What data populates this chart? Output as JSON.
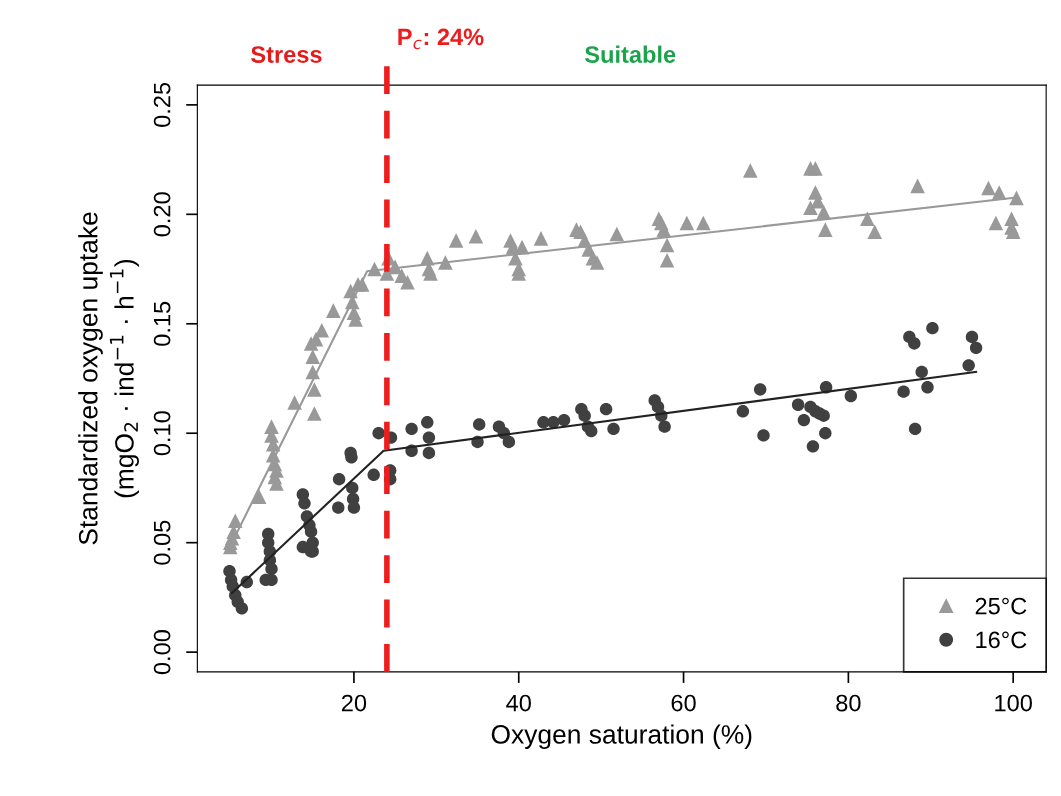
{
  "chart_data": {
    "type": "scatter",
    "xlabel": "Oxygen saturation (%)",
    "ylabel": "Standardized oxygen uptake\n(mgO$_{2}$ · ind$^{−1}$ · h$^{−1}$)",
    "annotations": [
      "Stress",
      "Suitable"
    ],
    "xlim": [
      1,
      104
    ],
    "ylim": [
      -0.009,
      0.259
    ],
    "xticks": [
      20,
      40,
      60,
      80,
      100
    ],
    "yticks": [
      {
        "value": 0,
        "label": "0.00"
      },
      {
        "value": 0.05,
        "label": "0.05"
      },
      {
        "value": 0.1,
        "label": "0.10"
      },
      {
        "value": 0.15,
        "label": "0.15"
      },
      {
        "value": 0.2,
        "label": "0.20"
      },
      {
        "value": 0.25,
        "label": "0.25"
      }
    ],
    "grid": false,
    "legend": "bottom right",
    "ref_lines": [
      {
        "axis": "x",
        "value": 24,
        "label": "P$_{c}$: 24%",
        "color": "#ee1c1c",
        "line_style": "dashed"
      }
    ],
    "series": [
      {
        "name": "25°C",
        "marker": "triangle",
        "color": "#999999",
        "x": [
          5,
          5,
          5.2,
          5.4,
          5.6,
          8.5,
          10,
          10,
          10.2,
          10.2,
          10.4,
          10.4,
          10.6,
          10.6,
          12.8,
          14.8,
          15,
          15,
          15.2,
          15.2,
          15.4,
          16.1,
          17.5,
          19.6,
          19.8,
          20,
          20.2,
          20.5,
          21,
          22.5,
          24,
          24.2,
          25,
          25.8,
          26.5,
          28.9,
          29.1,
          29.3,
          31.1,
          32.4,
          34.8,
          39,
          39.3,
          39.6,
          40,
          40,
          40.4,
          42.7,
          47,
          47.5,
          48,
          48.5,
          49,
          49.5,
          51.9,
          57,
          57.3,
          57.6,
          58,
          58,
          60.4,
          62.4,
          68.1,
          75.4,
          76,
          76,
          76.3,
          75.4,
          77,
          77.2,
          82.3,
          83.2,
          88.4,
          97,
          97.9,
          98.3,
          99.8,
          99.8,
          100,
          100.4
        ],
        "values": [
          0.048,
          0.05,
          0.052,
          0.055,
          0.06,
          0.071,
          0.103,
          0.099,
          0.095,
          0.09,
          0.086,
          0.08,
          0.083,
          0.077,
          0.114,
          0.141,
          0.135,
          0.128,
          0.12,
          0.109,
          0.143,
          0.147,
          0.156,
          0.165,
          0.16,
          0.155,
          0.152,
          0.168,
          0.168,
          0.175,
          0.173,
          0.18,
          0.176,
          0.172,
          0.169,
          0.18,
          0.175,
          0.173,
          0.178,
          0.188,
          0.19,
          0.188,
          0.185,
          0.18,
          0.175,
          0.173,
          0.185,
          0.189,
          0.193,
          0.192,
          0.188,
          0.184,
          0.18,
          0.178,
          0.191,
          0.198,
          0.196,
          0.193,
          0.186,
          0.179,
          0.196,
          0.196,
          0.22,
          0.221,
          0.221,
          0.21,
          0.206,
          0.203,
          0.201,
          0.193,
          0.198,
          0.192,
          0.213,
          0.212,
          0.196,
          0.21,
          0.198,
          0.194,
          0.192,
          0.2075
        ]
      },
      {
        "name": "16°C",
        "marker": "circle",
        "color": "#404040",
        "x": [
          4.9,
          5.1,
          5.3,
          5.6,
          5.9,
          6.4,
          7,
          9.6,
          9.6,
          9.8,
          9.8,
          10,
          10,
          9.3,
          13.8,
          14,
          14.3,
          14.6,
          14.8,
          15,
          15,
          13.8,
          14.8,
          18.2,
          18.1,
          19.6,
          19.7,
          19.8,
          19.9,
          20,
          22.4,
          23,
          24.5,
          24.4,
          24.4,
          27,
          27,
          28.9,
          29.1,
          29.1,
          35.2,
          35,
          37.6,
          38.2,
          38.8,
          43,
          44.2,
          45.5,
          47.6,
          48,
          48.4,
          48.8,
          50.6,
          51.5,
          56.5,
          56.9,
          57.3,
          57.7,
          67.2,
          69.3,
          69.7,
          73.9,
          75.4,
          76,
          76.5,
          77,
          74.6,
          77.2,
          75.7,
          77.3,
          80.3,
          86.7,
          88.1,
          87.4,
          88,
          90.2,
          88.9,
          89.6,
          95,
          95.5,
          94.6
        ],
        "values": [
          0.037,
          0.033,
          0.03,
          0.026,
          0.023,
          0.02,
          0.032,
          0.054,
          0.05,
          0.046,
          0.042,
          0.038,
          0.033,
          0.033,
          0.072,
          0.068,
          0.062,
          0.058,
          0.055,
          0.05,
          0.046,
          0.048,
          0.046,
          0.079,
          0.066,
          0.091,
          0.089,
          0.075,
          0.07,
          0.066,
          0.081,
          0.1,
          0.098,
          0.083,
          0.079,
          0.102,
          0.092,
          0.105,
          0.098,
          0.091,
          0.104,
          0.096,
          0.103,
          0.1,
          0.096,
          0.105,
          0.105,
          0.106,
          0.111,
          0.108,
          0.103,
          0.101,
          0.111,
          0.102,
          0.115,
          0.112,
          0.108,
          0.103,
          0.11,
          0.12,
          0.099,
          0.113,
          0.112,
          0.11,
          0.109,
          0.108,
          0.106,
          0.1,
          0.094,
          0.121,
          0.117,
          0.119,
          0.102,
          0.144,
          0.141,
          0.148,
          0.128,
          0.121,
          0.144,
          0.139,
          0.131
        ]
      },
      {
        "type": "line",
        "marker": "none",
        "color": "#999999",
        "x": [
          5.2,
          21.6,
          100
        ],
        "values": [
          0.05,
          0.174,
          0.2075
        ]
      },
      {
        "type": "line",
        "marker": "none",
        "color": "#222222",
        "x": [
          5.2,
          23.6,
          95.5
        ],
        "values": [
          0.027,
          0.092,
          0.128
        ]
      }
    ]
  }
}
